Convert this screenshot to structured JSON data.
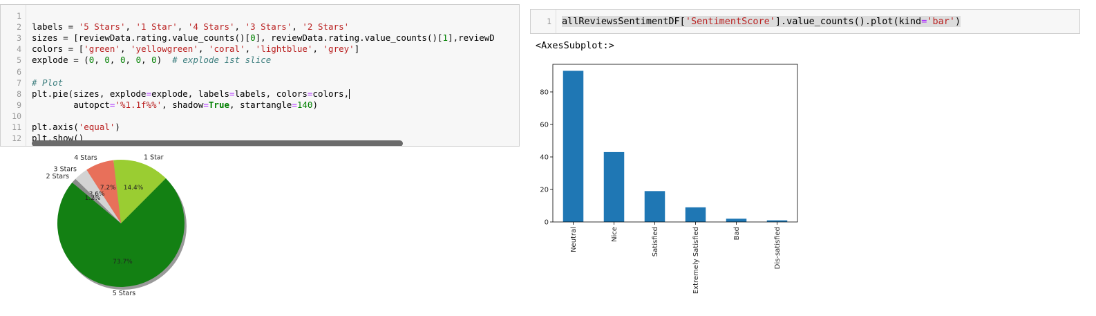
{
  "left_cell": {
    "line_numbers": [
      "1",
      "2",
      "3",
      "4",
      "5",
      "6",
      "7",
      "8",
      "9",
      "10",
      "11",
      "12"
    ],
    "lines": [
      [],
      [
        {
          "t": "labels = "
        },
        {
          "t": "'5 Stars'",
          "c": "s"
        },
        {
          "t": ", "
        },
        {
          "t": "'1 Star'",
          "c": "s"
        },
        {
          "t": ", "
        },
        {
          "t": "'4 Stars'",
          "c": "s"
        },
        {
          "t": ", "
        },
        {
          "t": "'3 Stars'",
          "c": "s"
        },
        {
          "t": ", "
        },
        {
          "t": "'2 Stars'",
          "c": "s"
        }
      ],
      [
        {
          "t": "sizes = [reviewData.rating.value_counts()["
        },
        {
          "t": "0",
          "c": "nm"
        },
        {
          "t": "], reviewData.rating.value_counts()["
        },
        {
          "t": "1",
          "c": "nm"
        },
        {
          "t": "],reviewD"
        }
      ],
      [
        {
          "t": "colors = ["
        },
        {
          "t": "'green'",
          "c": "s"
        },
        {
          "t": ", "
        },
        {
          "t": "'yellowgreen'",
          "c": "s"
        },
        {
          "t": ", "
        },
        {
          "t": "'coral'",
          "c": "s"
        },
        {
          "t": ", "
        },
        {
          "t": "'lightblue'",
          "c": "s"
        },
        {
          "t": ", "
        },
        {
          "t": "'grey'",
          "c": "s"
        },
        {
          "t": "]"
        }
      ],
      [
        {
          "t": "explode = ("
        },
        {
          "t": "0",
          "c": "nm"
        },
        {
          "t": ", "
        },
        {
          "t": "0",
          "c": "nm"
        },
        {
          "t": ", "
        },
        {
          "t": "0",
          "c": "nm"
        },
        {
          "t": ", "
        },
        {
          "t": "0",
          "c": "nm"
        },
        {
          "t": ", "
        },
        {
          "t": "0",
          "c": "nm"
        },
        {
          "t": ")  "
        },
        {
          "t": "# explode 1st slice",
          "c": "cm"
        }
      ],
      [],
      [
        {
          "t": "# Plot",
          "c": "cm"
        }
      ],
      [
        {
          "t": "plt.pie(sizes, explode"
        },
        {
          "t": "=",
          "c": "op"
        },
        {
          "t": "explode, labels"
        },
        {
          "t": "=",
          "c": "op"
        },
        {
          "t": "labels, colors"
        },
        {
          "t": "=",
          "c": "op"
        },
        {
          "t": "colors,"
        }
      ],
      [
        {
          "t": "        autopct"
        },
        {
          "t": "=",
          "c": "op"
        },
        {
          "t": "'%1.1f%%'",
          "c": "s"
        },
        {
          "t": ", shadow"
        },
        {
          "t": "=",
          "c": "op"
        },
        {
          "t": "True",
          "c": "kw"
        },
        {
          "t": ", startangle"
        },
        {
          "t": "=",
          "c": "op"
        },
        {
          "t": "140",
          "c": "nm"
        },
        {
          "t": ")"
        }
      ],
      [],
      [
        {
          "t": "plt.axis("
        },
        {
          "t": "'equal'",
          "c": "s"
        },
        {
          "t": ")"
        }
      ],
      [
        {
          "t": "plt.show()"
        }
      ]
    ]
  },
  "right_cell": {
    "line_number": "1",
    "code_parts": [
      {
        "t": "allReviewsSentimentDF[",
        "c": "hl"
      },
      {
        "t": "'SentimentScore'",
        "c": "s hl"
      },
      {
        "t": "].value_counts().plot(kind",
        "c": "hl"
      },
      {
        "t": "=",
        "c": "op hl"
      },
      {
        "t": "'bar'",
        "c": "s hl"
      },
      {
        "t": ")",
        "c": "hl"
      }
    ],
    "output_label": "<AxesSubplot:>"
  },
  "chart_data": [
    {
      "type": "pie",
      "labels": [
        "5 Stars",
        "1 Star",
        "4 Stars",
        "3 Stars",
        "2 Stars"
      ],
      "values": [
        73.7,
        14.4,
        7.2,
        3.6,
        1.2
      ],
      "pct_labels": [
        "73.7%",
        "14.4%",
        "7.2%",
        "3.6%",
        "1.2%"
      ],
      "colors": [
        "#138013",
        "#9acd32",
        "#e8705a",
        "#d3d3d3",
        "#8a8a8a"
      ],
      "startangle": 140,
      "shadow": true
    },
    {
      "type": "bar",
      "categories": [
        "Neutral",
        "Nice",
        "Satisfied",
        "Extremely Satisfied",
        "Bad",
        "Dis-satisfied"
      ],
      "values": [
        93,
        43,
        19,
        9,
        2,
        1
      ],
      "yticks": [
        "0",
        "20",
        "40",
        "60",
        "80"
      ],
      "ylim": [
        0,
        97
      ],
      "color": "#1f77b4"
    }
  ]
}
